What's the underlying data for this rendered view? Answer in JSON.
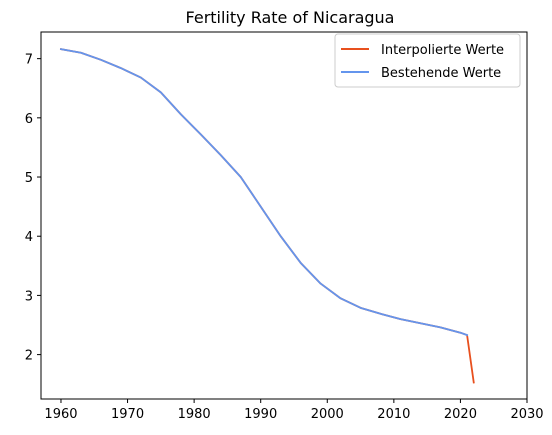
{
  "chart_data": {
    "type": "line",
    "title": "Fertility Rate of Nicaragua",
    "xlabel": "",
    "ylabel": "",
    "xlim": [
      1957,
      2030
    ],
    "ylim": [
      1.25,
      7.45
    ],
    "xticks": [
      1960,
      1970,
      1980,
      1990,
      2000,
      2010,
      2020,
      2030
    ],
    "yticks": [
      2,
      3,
      4,
      5,
      6,
      7
    ],
    "grid": false,
    "legend_position": "top-right",
    "series": [
      {
        "name": "Interpolierte Werte",
        "color": "#e8501e",
        "x": [
          1960,
          1963,
          1966,
          1969,
          1972,
          1975,
          1978,
          1981,
          1984,
          1987,
          1990,
          1993,
          1996,
          1999,
          2002,
          2005,
          2008,
          2011,
          2014,
          2017,
          2020,
          2021,
          2022
        ],
        "y": [
          7.16,
          7.1,
          6.98,
          6.84,
          6.68,
          6.43,
          6.06,
          5.72,
          5.37,
          5.0,
          4.5,
          4.0,
          3.55,
          3.2,
          2.95,
          2.79,
          2.69,
          2.6,
          2.53,
          2.46,
          2.37,
          2.33,
          1.53
        ]
      },
      {
        "name": "Bestehende Werte",
        "color": "#6495ed",
        "x": [
          1960,
          1963,
          1966,
          1969,
          1972,
          1975,
          1978,
          1981,
          1984,
          1987,
          1990,
          1993,
          1996,
          1999,
          2002,
          2005,
          2008,
          2011,
          2014,
          2017,
          2020,
          2021
        ],
        "y": [
          7.16,
          7.1,
          6.98,
          6.84,
          6.68,
          6.43,
          6.06,
          5.72,
          5.37,
          5.0,
          4.5,
          4.0,
          3.55,
          3.2,
          2.95,
          2.79,
          2.69,
          2.6,
          2.53,
          2.46,
          2.37,
          2.33
        ]
      }
    ]
  }
}
